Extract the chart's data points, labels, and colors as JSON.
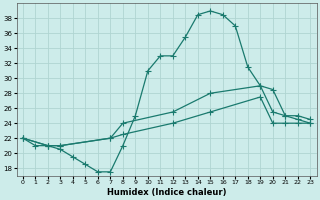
{
  "bg_color": "#cdecea",
  "line_color": "#1a7a6e",
  "grid_color": "#b0d5d2",
  "xlabel": "Humidex (Indice chaleur)",
  "xlim": [
    -0.5,
    23.5
  ],
  "ylim": [
    17,
    40
  ],
  "yticks": [
    18,
    20,
    22,
    24,
    26,
    28,
    30,
    32,
    34,
    36,
    38
  ],
  "xticks": [
    0,
    1,
    2,
    3,
    4,
    5,
    6,
    7,
    8,
    9,
    10,
    11,
    12,
    13,
    14,
    15,
    16,
    17,
    18,
    19,
    20,
    21,
    22,
    23
  ],
  "curve1_x": [
    0,
    1,
    2,
    3,
    4,
    5,
    6,
    7,
    8,
    9,
    10,
    11,
    12,
    13,
    14,
    15,
    16,
    17,
    18,
    19,
    20,
    21,
    22,
    23
  ],
  "curve1_y": [
    22,
    21,
    21,
    20.5,
    19.5,
    18.5,
    17.5,
    17.5,
    21,
    25,
    31,
    33,
    33,
    35.5,
    38.5,
    39,
    38.5,
    37,
    31.5,
    29,
    25.5,
    25,
    24.5,
    24
  ],
  "curve2_x": [
    0,
    2,
    3,
    7,
    8,
    12,
    15,
    19,
    20,
    21,
    22,
    23
  ],
  "curve2_y": [
    22,
    21,
    21,
    22,
    24,
    25.5,
    28,
    29,
    28.5,
    25,
    25,
    24.5
  ],
  "curve3_x": [
    0,
    2,
    3,
    7,
    8,
    12,
    15,
    19,
    20,
    21,
    22,
    23
  ],
  "curve3_y": [
    22,
    21,
    21,
    22,
    22.5,
    24,
    25.5,
    27.5,
    24,
    24,
    24,
    24
  ]
}
